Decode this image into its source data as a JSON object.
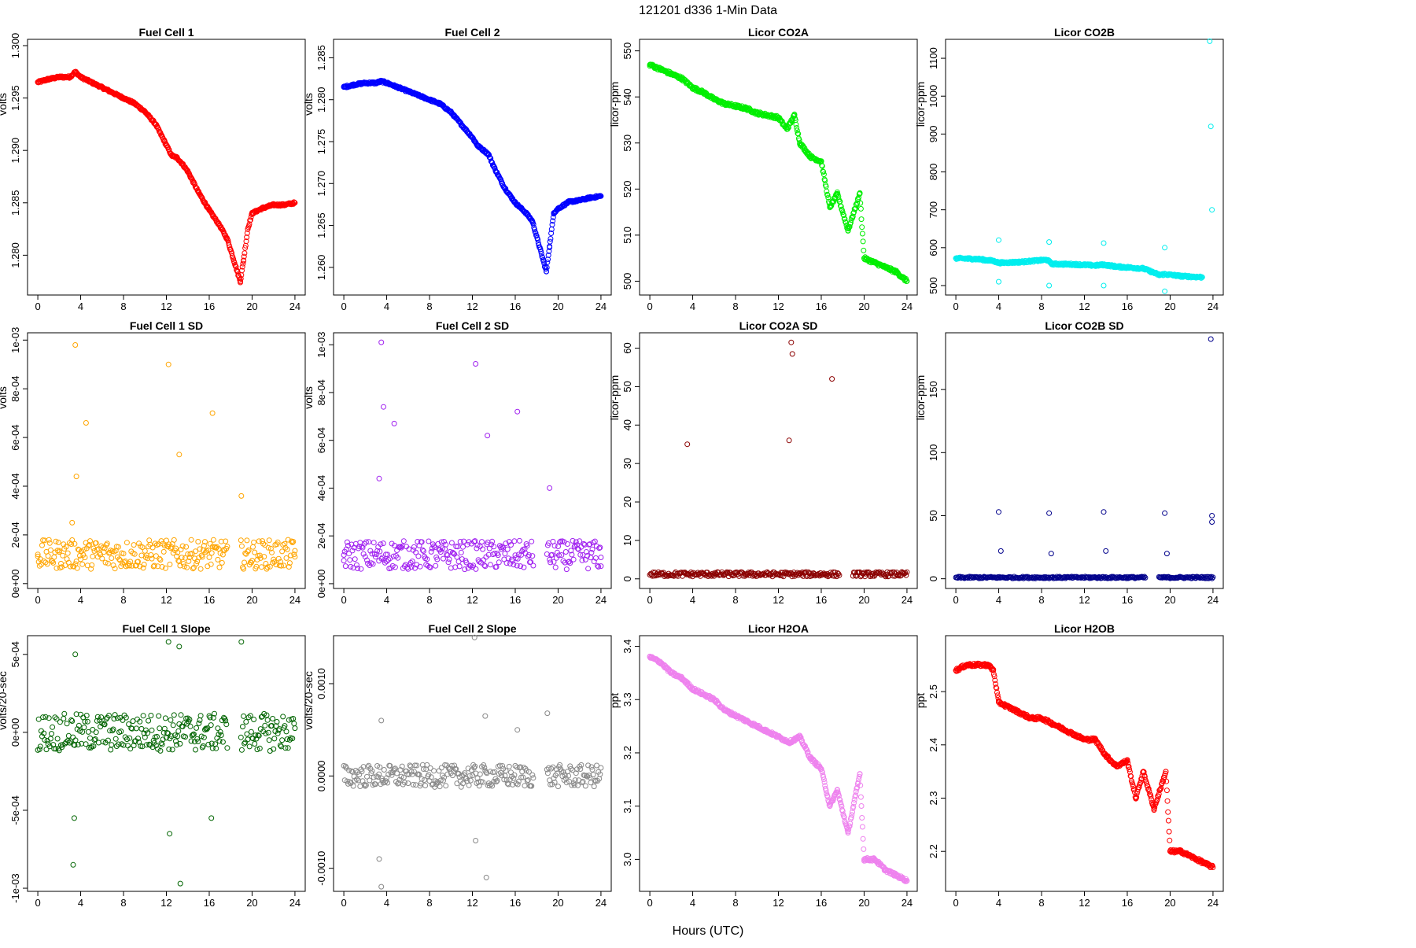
{
  "figure": {
    "title": "121201    d336    1-Min Data",
    "xlabel": "Hours (UTC)"
  },
  "chart_data": [
    {
      "id": "fc1",
      "type": "scatter",
      "title": "Fuel Cell 1",
      "ylabel": "volts",
      "color": "#ff0000",
      "xlim": [
        -0.96,
        24.96
      ],
      "ylim": [
        1.2762,
        1.3006
      ],
      "xticks": [
        0,
        4,
        8,
        12,
        16,
        20,
        24
      ],
      "xtick_labels": [
        "0",
        "4",
        "8",
        "12",
        "16",
        "20",
        "24"
      ],
      "yticks": [
        1.28,
        1.285,
        1.29,
        1.295,
        1.3
      ],
      "ytick_labels": [
        "1.280",
        "1.285",
        "1.290",
        "1.295",
        "1.300"
      ],
      "x": [
        0,
        1,
        2,
        3,
        3.5,
        4,
        5,
        6,
        7,
        8,
        9,
        10,
        11,
        12,
        12.5,
        13,
        13.5,
        14,
        15,
        16,
        17,
        17.7,
        18.9,
        19.2,
        19.6,
        20,
        21,
        22,
        23,
        24
      ],
      "y": [
        1.2965,
        1.2968,
        1.297,
        1.297,
        1.2975,
        1.297,
        1.2965,
        1.296,
        1.2955,
        1.295,
        1.2945,
        1.2937,
        1.2925,
        1.2905,
        1.2895,
        1.2893,
        1.2887,
        1.288,
        1.286,
        1.2843,
        1.2828,
        1.2815,
        1.2775,
        1.2795,
        1.2825,
        1.284,
        1.2845,
        1.2848,
        1.2848,
        1.285
      ]
    },
    {
      "id": "fc2",
      "type": "scatter",
      "title": "Fuel Cell 2",
      "ylabel": "volts",
      "color": "#0000ff",
      "xlim": [
        -0.96,
        24.96
      ],
      "ylim": [
        1.2567,
        1.2872
      ],
      "xticks": [
        0,
        4,
        8,
        12,
        16,
        20,
        24
      ],
      "xtick_labels": [
        "0",
        "4",
        "8",
        "12",
        "16",
        "20",
        "24"
      ],
      "yticks": [
        1.26,
        1.265,
        1.27,
        1.275,
        1.28,
        1.285
      ],
      "ytick_labels": [
        "1.260",
        "1.265",
        "1.270",
        "1.275",
        "1.280",
        "1.285"
      ],
      "x": [
        0,
        1,
        2,
        3,
        3.5,
        4,
        5,
        6,
        7,
        8,
        9,
        10,
        11,
        12,
        12.5,
        13.5,
        14,
        15,
        16,
        17,
        17.6,
        18.9,
        19.2,
        19.6,
        20,
        21,
        22,
        23,
        24
      ],
      "y": [
        1.2815,
        1.2818,
        1.282,
        1.282,
        1.2822,
        1.282,
        1.2815,
        1.281,
        1.2805,
        1.28,
        1.2795,
        1.2785,
        1.277,
        1.2755,
        1.2745,
        1.2735,
        1.272,
        1.2695,
        1.2677,
        1.2665,
        1.2655,
        1.2595,
        1.2625,
        1.2665,
        1.267,
        1.2678,
        1.268,
        1.2683,
        1.2685
      ]
    },
    {
      "id": "co2a",
      "type": "scatter",
      "title": "Licor CO2A",
      "ylabel": "licor-ppm",
      "color": "#00ee00",
      "xlim": [
        -0.96,
        24.96
      ],
      "ylim": [
        497,
        552.5
      ],
      "xticks": [
        0,
        4,
        8,
        12,
        16,
        20,
        24
      ],
      "xtick_labels": [
        "0",
        "4",
        "8",
        "12",
        "16",
        "20",
        "24"
      ],
      "yticks": [
        500,
        510,
        520,
        530,
        540,
        550
      ],
      "ytick_labels": [
        "500",
        "510",
        "520",
        "530",
        "540",
        "550"
      ],
      "x": [
        0,
        1,
        2,
        3,
        4,
        5,
        6,
        7,
        8,
        9,
        10,
        11,
        12,
        12.8,
        13.5,
        14,
        15,
        16,
        16.8,
        17.5,
        18.5,
        19.6,
        20,
        21,
        22,
        23,
        24
      ],
      "y": [
        547,
        546,
        545,
        544,
        542,
        541,
        539.5,
        538.5,
        538,
        537.5,
        536.5,
        536,
        535.5,
        533,
        536,
        530,
        527,
        526,
        516,
        519,
        511,
        519,
        505,
        504,
        503,
        502,
        500
      ]
    },
    {
      "id": "co2b",
      "type": "scatter",
      "title": "Licor CO2B",
      "ylabel": "licor-ppm",
      "color": "#00eeee",
      "xlim": [
        -0.96,
        24.96
      ],
      "ylim": [
        475,
        1150
      ],
      "xticks": [
        0,
        4,
        8,
        12,
        16,
        20,
        24
      ],
      "xtick_labels": [
        "0",
        "4",
        "8",
        "12",
        "16",
        "20",
        "24"
      ],
      "yticks": [
        500,
        600,
        700,
        800,
        900,
        1000,
        1100
      ],
      "ytick_labels": [
        "500",
        "600",
        "700",
        "800",
        "900",
        "1000",
        "1100"
      ],
      "x": [
        0,
        2,
        3.5,
        4,
        6,
        8.5,
        9,
        11,
        13,
        13.8,
        15,
        17.5,
        19,
        19.5,
        21,
        23,
        23.7,
        23.8,
        23.9
      ],
      "y": [
        572,
        570,
        565,
        560,
        562,
        568,
        557,
        556,
        553,
        555,
        550,
        545,
        528,
        530,
        525,
        522,
        1145,
        920,
        700
      ],
      "extra_points": {
        "x": [
          4,
          4,
          8.7,
          8.7,
          13.8,
          13.8,
          19.5,
          19.5
        ],
        "y": [
          620,
          510,
          615,
          500,
          612,
          500,
          600,
          485
        ]
      }
    },
    {
      "id": "fc1sd",
      "type": "scatter",
      "title": "Fuel Cell 1 SD",
      "ylabel": "volts",
      "color": "#ffa500",
      "xlim": [
        -0.96,
        24.96
      ],
      "ylim": [
        -2e-05,
        0.00103
      ],
      "xticks": [
        0,
        4,
        8,
        12,
        16,
        20,
        24
      ],
      "xtick_labels": [
        "0",
        "4",
        "8",
        "12",
        "16",
        "20",
        "24"
      ],
      "yticks": [
        0,
        0.0002,
        0.0004,
        0.0006,
        0.0008,
        0.001
      ],
      "ytick_labels": [
        "0e+00",
        "2e-04",
        "4e-04",
        "6e-04",
        "8e-04",
        "1e-03"
      ],
      "x": [
        0,
        2,
        3.2,
        3.5,
        3.6,
        4.5,
        12.2,
        13.2,
        16.3,
        19,
        24
      ],
      "y": [
        0.00012,
        0.00013,
        0.00025,
        0.00098,
        0.00044,
        0.00066,
        0.0009,
        0.00053,
        0.0007,
        0.00036,
        0.00011
      ],
      "band": {
        "center": 0.00012,
        "spread": 6e-05
      }
    },
    {
      "id": "fc2sd",
      "type": "scatter",
      "title": "Fuel Cell 2 SD",
      "ylabel": "volts",
      "color": "#a020f0",
      "xlim": [
        -0.96,
        24.96
      ],
      "ylim": [
        -2e-05,
        0.00105
      ],
      "xticks": [
        0,
        4,
        8,
        12,
        16,
        20,
        24
      ],
      "xtick_labels": [
        "0",
        "4",
        "8",
        "12",
        "16",
        "20",
        "24"
      ],
      "yticks": [
        0,
        0.0002,
        0.0004,
        0.0006,
        0.0008,
        0.001
      ],
      "ytick_labels": [
        "0e+00",
        "2e-04",
        "4e-04",
        "6e-04",
        "8e-04",
        "1e-03"
      ],
      "x": [
        0,
        3.3,
        3.5,
        3.7,
        4.7,
        12.3,
        13.4,
        16.2,
        19.2,
        24
      ],
      "y": [
        0.00012,
        0.00044,
        0.00101,
        0.00074,
        0.00067,
        0.00092,
        0.00062,
        0.00072,
        0.0004,
        0.00011
      ],
      "band": {
        "center": 0.00012,
        "spread": 6e-05
      }
    },
    {
      "id": "co2asd",
      "type": "scatter",
      "title": "Licor CO2A SD",
      "ylabel": "licor-ppm",
      "color": "#8b0000",
      "xlim": [
        -0.96,
        24.96
      ],
      "ylim": [
        -2.5,
        64
      ],
      "xticks": [
        0,
        4,
        8,
        12,
        16,
        20,
        24
      ],
      "xtick_labels": [
        "0",
        "4",
        "8",
        "12",
        "16",
        "20",
        "24"
      ],
      "yticks": [
        0,
        10,
        20,
        30,
        40,
        50,
        60
      ],
      "ytick_labels": [
        "0",
        "10",
        "20",
        "30",
        "40",
        "50",
        "60"
      ],
      "x": [
        3.5,
        13,
        13.2,
        13.3,
        17
      ],
      "y": [
        35,
        36,
        61.5,
        58.5,
        52
      ],
      "band": {
        "center": 1.2,
        "spread": 0.6
      }
    },
    {
      "id": "co2bsd",
      "type": "scatter",
      "title": "Licor CO2B SD",
      "ylabel": "licor-ppm",
      "color": "#00008b",
      "xlim": [
        -0.96,
        24.96
      ],
      "ylim": [
        -7.7,
        195
      ],
      "xticks": [
        0,
        4,
        8,
        12,
        16,
        20,
        24
      ],
      "xtick_labels": [
        "0",
        "4",
        "8",
        "12",
        "16",
        "20",
        "24"
      ],
      "yticks": [
        0,
        50,
        100,
        150
      ],
      "ytick_labels": [
        "0",
        "50",
        "100",
        "150"
      ],
      "x": [
        4,
        4.2,
        8.7,
        8.9,
        13.8,
        14,
        19.5,
        19.7,
        23.8,
        23.9,
        23.9
      ],
      "y": [
        53,
        22,
        52,
        20,
        53,
        22,
        52,
        20,
        190,
        50,
        45
      ],
      "band": {
        "center": 1,
        "spread": 0.7
      }
    },
    {
      "id": "fc1slope",
      "type": "scatter",
      "title": "Fuel Cell 1 Slope",
      "ylabel": "volts/20-sec",
      "color": "#006400",
      "xlim": [
        -0.96,
        24.96
      ],
      "ylim": [
        -0.00102,
        0.00062
      ],
      "xticks": [
        0,
        4,
        8,
        12,
        16,
        20,
        24
      ],
      "xtick_labels": [
        "0",
        "4",
        "8",
        "12",
        "16",
        "20",
        "24"
      ],
      "yticks": [
        -0.001,
        -0.0005,
        0,
        0.0005
      ],
      "ytick_labels": [
        "-1e-03",
        "-5e-04",
        "0e+00",
        "5e-04"
      ],
      "x": [
        3.3,
        3.5,
        3.4,
        12.2,
        13.3,
        13.2,
        19,
        12.3,
        16.2
      ],
      "y": [
        -0.00085,
        0.0005,
        -0.00055,
        0.00058,
        -0.00097,
        0.00055,
        0.00058,
        -0.00065,
        -0.00055
      ],
      "band": {
        "center": 0,
        "spread": 0.00012
      }
    },
    {
      "id": "fc2slope",
      "type": "scatter",
      "title": "Fuel Cell 2 Slope",
      "ylabel": "volts/20-sec",
      "color": "#888888",
      "xlim": [
        -0.96,
        24.96
      ],
      "ylim": [
        -0.00125,
        0.00152
      ],
      "xticks": [
        0,
        4,
        8,
        12,
        16,
        20,
        24
      ],
      "xtick_labels": [
        "0",
        "4",
        "8",
        "12",
        "16",
        "20",
        "24"
      ],
      "yticks": [
        -0.001,
        0,
        0.001
      ],
      "ytick_labels": [
        "-0.0010",
        "0.0000",
        "0.0010"
      ],
      "x": [
        12.2,
        3.5,
        3.3,
        13.3,
        13.2,
        19,
        16.2,
        12.3,
        3.5
      ],
      "y": [
        0.0015,
        -0.0012,
        -0.0009,
        -0.0011,
        0.00065,
        0.00068,
        0.0005,
        -0.0007,
        0.0006
      ],
      "band": {
        "center": 0,
        "spread": 0.00012
      }
    },
    {
      "id": "h2oa",
      "type": "scatter",
      "title": "Licor H2OA",
      "ylabel": "ppt",
      "color": "#ee82ee",
      "xlim": [
        -0.96,
        24.96
      ],
      "ylim": [
        2.94,
        3.42
      ],
      "xticks": [
        0,
        4,
        8,
        12,
        16,
        20,
        24
      ],
      "xtick_labels": [
        "0",
        "4",
        "8",
        "12",
        "16",
        "20",
        "24"
      ],
      "yticks": [
        3.0,
        3.1,
        3.2,
        3.3,
        3.4
      ],
      "ytick_labels": [
        "3.0",
        "3.1",
        "3.2",
        "3.3",
        "3.4"
      ],
      "x": [
        0,
        1,
        2,
        3,
        4,
        5,
        6,
        7,
        8,
        9,
        10,
        11,
        12,
        13,
        14,
        15,
        16,
        16.8,
        17.5,
        18.5,
        19.6,
        20,
        21,
        22,
        23,
        24
      ],
      "y": [
        3.38,
        3.37,
        3.35,
        3.34,
        3.32,
        3.31,
        3.3,
        3.28,
        3.27,
        3.26,
        3.25,
        3.24,
        3.23,
        3.22,
        3.23,
        3.19,
        3.17,
        3.1,
        3.13,
        3.05,
        3.16,
        3.0,
        3.0,
        2.98,
        2.97,
        2.96
      ]
    },
    {
      "id": "h2ob",
      "type": "scatter",
      "title": "Licor H2OB",
      "ylabel": "ppt",
      "color": "#ff0000",
      "xlim": [
        -0.96,
        24.96
      ],
      "ylim": [
        2.125,
        2.605
      ],
      "xticks": [
        0,
        4,
        8,
        12,
        16,
        20,
        24
      ],
      "xtick_labels": [
        "0",
        "4",
        "8",
        "12",
        "16",
        "20",
        "24"
      ],
      "yticks": [
        2.2,
        2.3,
        2.4,
        2.5
      ],
      "ytick_labels": [
        "2.2",
        "2.3",
        "2.4",
        "2.5"
      ],
      "x": [
        0,
        1,
        2,
        3,
        3.5,
        4,
        5,
        6,
        7,
        8,
        9,
        10,
        11,
        12,
        13,
        14,
        15,
        16,
        16.8,
        17.5,
        18.5,
        19.6,
        20,
        21,
        22,
        23,
        24
      ],
      "y": [
        2.54,
        2.55,
        2.55,
        2.55,
        2.54,
        2.48,
        2.47,
        2.46,
        2.45,
        2.45,
        2.44,
        2.43,
        2.42,
        2.41,
        2.41,
        2.38,
        2.36,
        2.37,
        2.3,
        2.35,
        2.28,
        2.35,
        2.2,
        2.2,
        2.19,
        2.18,
        2.17
      ]
    }
  ]
}
